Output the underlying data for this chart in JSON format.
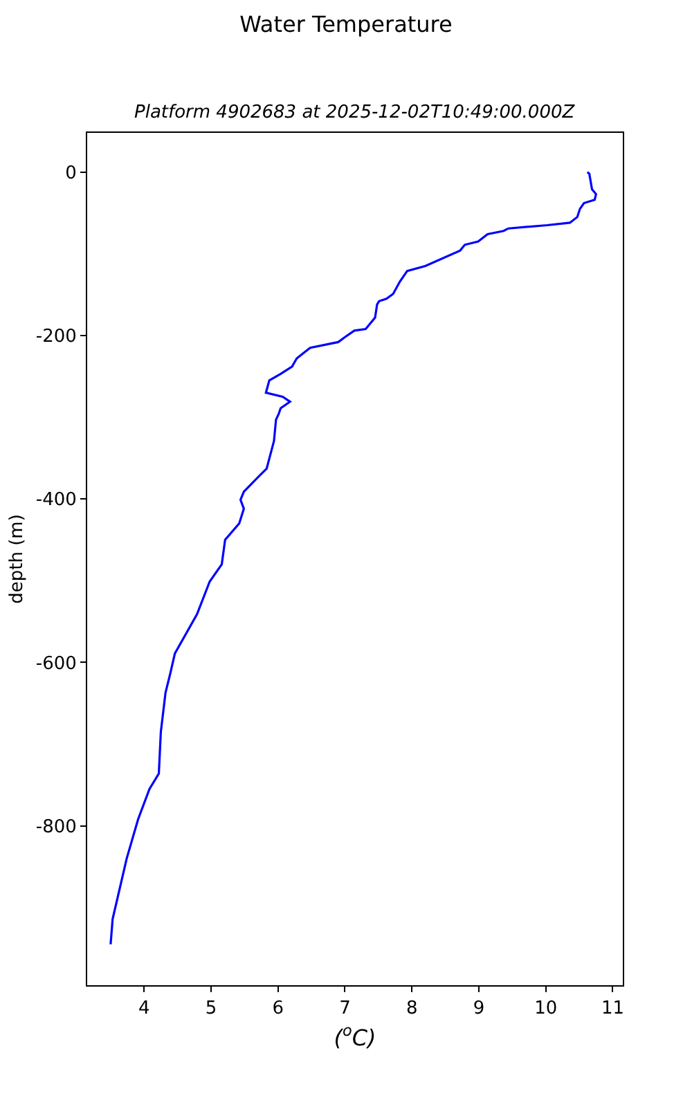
{
  "chart_data": {
    "type": "line",
    "title": "Water Temperature",
    "subtitle": "Platform 4902683 at 2025-12-02T10:49:00.000Z",
    "xlabel": "($^{o}$C)",
    "ylabel": "depth (m)",
    "series": [
      {
        "color": "#0000ff",
        "x": [
          10.62,
          10.65,
          10.69,
          10.75,
          10.73,
          10.57,
          10.51,
          10.47,
          10.36,
          10.02,
          9.44,
          9.37,
          9.13,
          8.99,
          8.79,
          8.72,
          8.2,
          7.93,
          7.82,
          7.72,
          7.62,
          7.51,
          7.48,
          7.45,
          7.31,
          7.14,
          7.0,
          6.9,
          6.48,
          6.28,
          6.21,
          6.04,
          5.87,
          5.82,
          6.07,
          6.18,
          6.04,
          6.01,
          5.97,
          5.94,
          5.83,
          5.73,
          5.49,
          5.44,
          5.49,
          5.42,
          5.21,
          5.16,
          4.98,
          4.79,
          4.46,
          4.39,
          4.32,
          4.25,
          4.22,
          4.08,
          3.91,
          3.74,
          3.53,
          3.5
        ],
        "values": [
          0,
          -2,
          -21,
          -27,
          -34,
          -38,
          -45,
          -55,
          -62,
          -65,
          -69,
          -72,
          -76,
          -85,
          -89,
          -96,
          -115,
          -121,
          -134,
          -149,
          -155,
          -158,
          -162,
          -178,
          -192,
          -194,
          -202,
          -208,
          -215,
          -228,
          -238,
          -247,
          -255,
          -270,
          -275,
          -281,
          -289,
          -296,
          -303,
          -329,
          -363,
          -371,
          -391,
          -401,
          -412,
          -430,
          -450,
          -480,
          -501,
          -541,
          -589,
          -614,
          -637,
          -685,
          -736,
          -755,
          -792,
          -840,
          -914,
          -945
        ]
      }
    ],
    "xlim": [
      3.15,
      11.15
    ],
    "xticks": [
      4,
      5,
      6,
      7,
      8,
      9,
      10,
      11
    ],
    "ylim": [
      -995,
      48
    ],
    "yticks": [
      0,
      -200,
      -400,
      -600,
      -800
    ],
    "marker": "none",
    "line_style": "solid"
  }
}
